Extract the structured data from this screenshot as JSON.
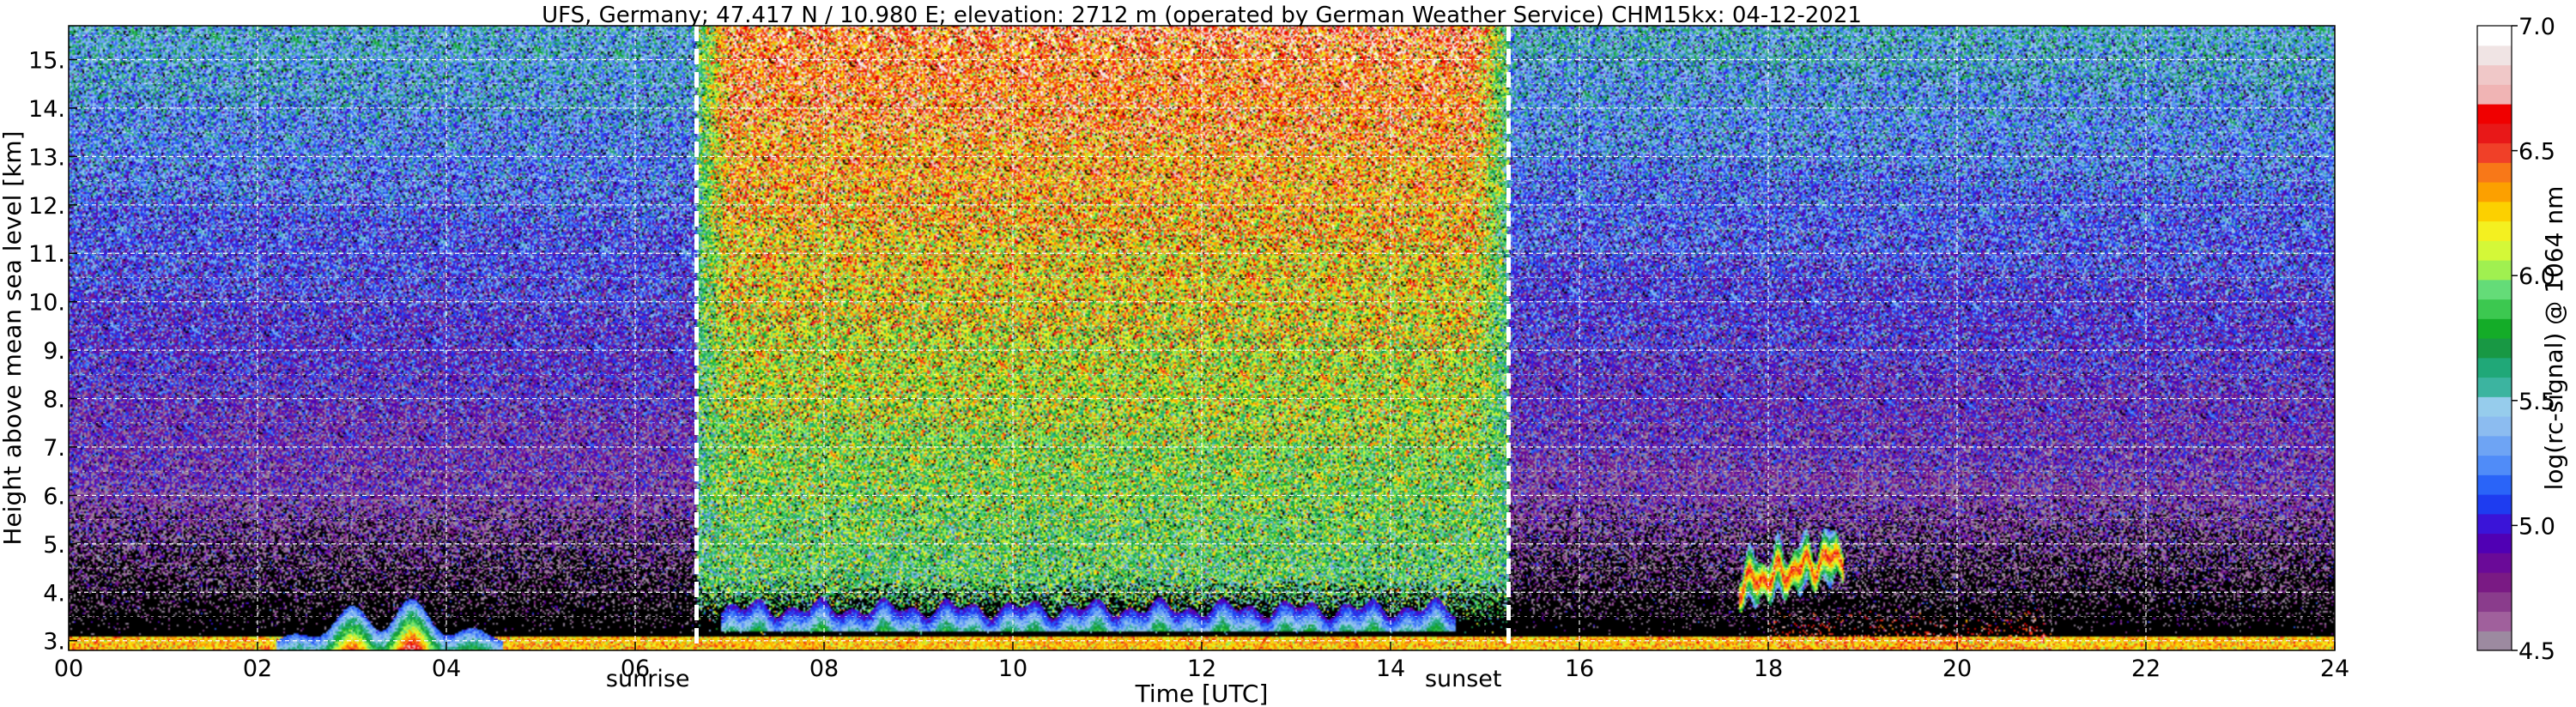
{
  "chart_data": {
    "type": "heatmap",
    "title": "UFS, Germany; 47.417 N / 10.980 E; elevation: 2712 m  (operated by German Weather Service)    CHM15kx: 04-12-2021",
    "xlabel": "Time [UTC]",
    "ylabel": "Height above mean sea level [km]",
    "xlim": [
      0,
      24
    ],
    "ylim": [
      2.8,
      15.7
    ],
    "x_ticks": [
      0,
      2,
      4,
      6,
      8,
      10,
      12,
      14,
      16,
      18,
      20,
      22,
      24
    ],
    "x_tick_labels": [
      "00",
      "02",
      "04",
      "06",
      "08",
      "10",
      "12",
      "14",
      "16",
      "18",
      "20",
      "22",
      "24"
    ],
    "y_ticks": [
      3,
      4,
      5,
      6,
      7,
      8,
      9,
      10,
      11,
      12,
      13,
      14,
      15
    ],
    "y_tick_labels": [
      "3.",
      "4.",
      "5.",
      "6.",
      "7.",
      "8.",
      "9.",
      "10.",
      "11.",
      "12.",
      "13.",
      "14.",
      "15."
    ],
    "grid": true,
    "annotations": [
      {
        "text": "sunrise",
        "x": 6.65
      },
      {
        "text": "sunset",
        "x": 15.25
      }
    ],
    "colorbar": {
      "label": "log(rc-signal) @ 1064 nm",
      "min": 4.5,
      "max": 7.0,
      "ticks": [
        4.5,
        5.0,
        5.5,
        6.0,
        6.5,
        7.0
      ],
      "tick_labels": [
        "4.5",
        "5.0",
        "5.5",
        "6.0",
        "6.5",
        "7.0"
      ],
      "colors": [
        "#9c8aa0",
        "#a0609c",
        "#8a3c8c",
        "#7a1a84",
        "#6a0a98",
        "#5000b4",
        "#3a14d8",
        "#1e3cf0",
        "#2a64f8",
        "#508cf8",
        "#6ea4f4",
        "#8cbcf0",
        "#96ccec",
        "#3cb4a0",
        "#20a878",
        "#189844",
        "#14ac28",
        "#3cc850",
        "#64dc78",
        "#a0f050",
        "#d4f838",
        "#f4f020",
        "#fcd000",
        "#fca000",
        "#f87818",
        "#f04028",
        "#e81818",
        "#f00000",
        "#f0b4b4",
        "#f0c8c8",
        "#f0e4e4",
        "#ffffff"
      ]
    },
    "features": [
      {
        "kind": "surface_signal",
        "x_range": [
          0,
          24
        ],
        "height": [
          2.8,
          3.1
        ]
      },
      {
        "kind": "aerosol_layer",
        "x_range": [
          2.2,
          4.6
        ],
        "height": [
          3.0,
          4.1
        ]
      },
      {
        "kind": "daytime_background",
        "x_range": [
          6.65,
          15.25
        ]
      },
      {
        "kind": "boundary_layer",
        "x_range": [
          6.9,
          14.7
        ],
        "height": [
          3.2,
          3.9
        ]
      },
      {
        "kind": "cloud_layer",
        "x_range": [
          17.7,
          18.8
        ],
        "height": [
          3.7,
          6.1
        ]
      },
      {
        "kind": "low_cloud",
        "x_range": [
          18.0,
          21.0
        ],
        "height": [
          3.0,
          3.7
        ]
      }
    ]
  }
}
